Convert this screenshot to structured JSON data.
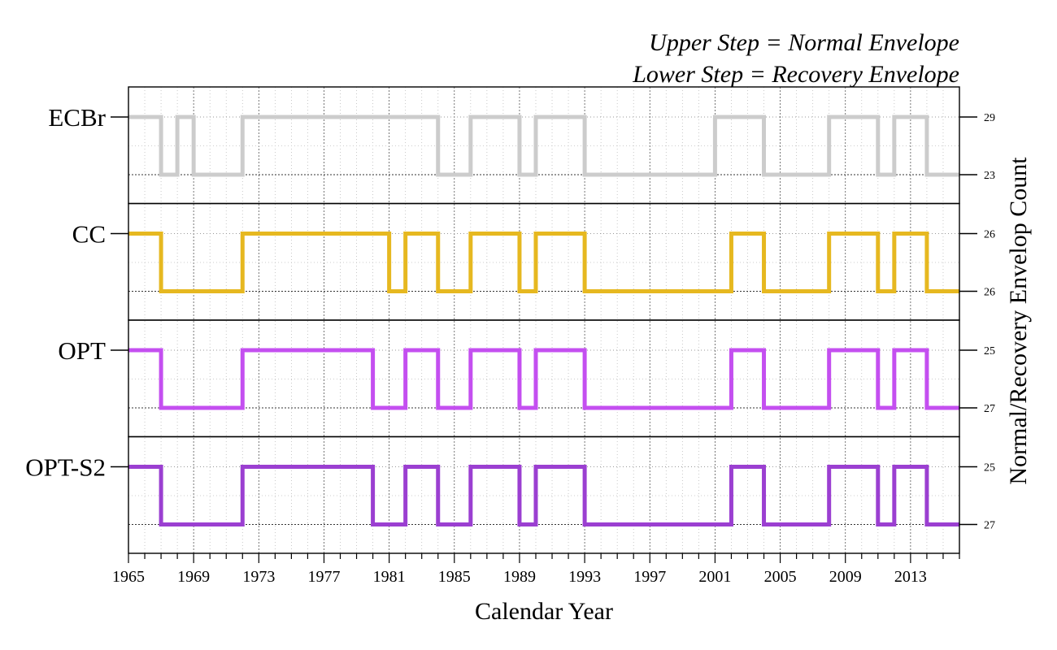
{
  "chart_data": {
    "type": "line",
    "step": true,
    "annotations": [
      "Upper Step = Normal Envelope",
      "Lower Step = Recovery Envelope"
    ],
    "xlabel": "Calendar Year",
    "ylabel": "Normal/Recovery Envelop Count",
    "xlim": [
      1965,
      2016
    ],
    "xticks": [
      1965,
      1969,
      1973,
      1977,
      1981,
      1985,
      1989,
      1993,
      1997,
      2001,
      2005,
      2009,
      2013
    ],
    "grid": true,
    "series": [
      {
        "name": "ECBr",
        "color": "#cccccc",
        "upper_count": "29",
        "lower_count": "23",
        "steps": [
          {
            "from": 1965,
            "to": 1967,
            "state": "upper"
          },
          {
            "from": 1967,
            "to": 1968,
            "state": "lower"
          },
          {
            "from": 1968,
            "to": 1969,
            "state": "upper"
          },
          {
            "from": 1969,
            "to": 1972,
            "state": "lower"
          },
          {
            "from": 1972,
            "to": 1984,
            "state": "upper"
          },
          {
            "from": 1984,
            "to": 1986,
            "state": "lower"
          },
          {
            "from": 1986,
            "to": 1989,
            "state": "upper"
          },
          {
            "from": 1989,
            "to": 1990,
            "state": "lower"
          },
          {
            "from": 1990,
            "to": 1993,
            "state": "upper"
          },
          {
            "from": 1993,
            "to": 2001,
            "state": "lower"
          },
          {
            "from": 2001,
            "to": 2004,
            "state": "upper"
          },
          {
            "from": 2004,
            "to": 2008,
            "state": "lower"
          },
          {
            "from": 2008,
            "to": 2011,
            "state": "upper"
          },
          {
            "from": 2011,
            "to": 2012,
            "state": "lower"
          },
          {
            "from": 2012,
            "to": 2014,
            "state": "upper"
          },
          {
            "from": 2014,
            "to": 2016,
            "state": "lower"
          }
        ]
      },
      {
        "name": "CC",
        "color": "#e6b820",
        "upper_count": "26",
        "lower_count": "26",
        "steps": [
          {
            "from": 1965,
            "to": 1967,
            "state": "upper"
          },
          {
            "from": 1967,
            "to": 1972,
            "state": "lower"
          },
          {
            "from": 1972,
            "to": 1981,
            "state": "upper"
          },
          {
            "from": 1981,
            "to": 1982,
            "state": "lower"
          },
          {
            "from": 1982,
            "to": 1984,
            "state": "upper"
          },
          {
            "from": 1984,
            "to": 1986,
            "state": "lower"
          },
          {
            "from": 1986,
            "to": 1989,
            "state": "upper"
          },
          {
            "from": 1989,
            "to": 1990,
            "state": "lower"
          },
          {
            "from": 1990,
            "to": 1993,
            "state": "upper"
          },
          {
            "from": 1993,
            "to": 2002,
            "state": "lower"
          },
          {
            "from": 2002,
            "to": 2004,
            "state": "upper"
          },
          {
            "from": 2004,
            "to": 2008,
            "state": "lower"
          },
          {
            "from": 2008,
            "to": 2011,
            "state": "upper"
          },
          {
            "from": 2011,
            "to": 2012,
            "state": "lower"
          },
          {
            "from": 2012,
            "to": 2014,
            "state": "upper"
          },
          {
            "from": 2014,
            "to": 2016,
            "state": "lower"
          }
        ]
      },
      {
        "name": "OPT",
        "color": "#c44ff0",
        "upper_count": "25",
        "lower_count": "27",
        "steps": [
          {
            "from": 1965,
            "to": 1967,
            "state": "upper"
          },
          {
            "from": 1967,
            "to": 1972,
            "state": "lower"
          },
          {
            "from": 1972,
            "to": 1980,
            "state": "upper"
          },
          {
            "from": 1980,
            "to": 1982,
            "state": "lower"
          },
          {
            "from": 1982,
            "to": 1984,
            "state": "upper"
          },
          {
            "from": 1984,
            "to": 1986,
            "state": "lower"
          },
          {
            "from": 1986,
            "to": 1989,
            "state": "upper"
          },
          {
            "from": 1989,
            "to": 1990,
            "state": "lower"
          },
          {
            "from": 1990,
            "to": 1993,
            "state": "upper"
          },
          {
            "from": 1993,
            "to": 2002,
            "state": "lower"
          },
          {
            "from": 2002,
            "to": 2004,
            "state": "upper"
          },
          {
            "from": 2004,
            "to": 2008,
            "state": "lower"
          },
          {
            "from": 2008,
            "to": 2011,
            "state": "upper"
          },
          {
            "from": 2011,
            "to": 2012,
            "state": "lower"
          },
          {
            "from": 2012,
            "to": 2014,
            "state": "upper"
          },
          {
            "from": 2014,
            "to": 2016,
            "state": "lower"
          }
        ]
      },
      {
        "name": "OPT-S2",
        "color": "#9b3fd1",
        "upper_count": "25",
        "lower_count": "27",
        "steps": [
          {
            "from": 1965,
            "to": 1967,
            "state": "upper"
          },
          {
            "from": 1967,
            "to": 1972,
            "state": "lower"
          },
          {
            "from": 1972,
            "to": 1980,
            "state": "upper"
          },
          {
            "from": 1980,
            "to": 1982,
            "state": "lower"
          },
          {
            "from": 1982,
            "to": 1984,
            "state": "upper"
          },
          {
            "from": 1984,
            "to": 1986,
            "state": "lower"
          },
          {
            "from": 1986,
            "to": 1989,
            "state": "upper"
          },
          {
            "from": 1989,
            "to": 1990,
            "state": "lower"
          },
          {
            "from": 1990,
            "to": 1993,
            "state": "upper"
          },
          {
            "from": 1993,
            "to": 2002,
            "state": "lower"
          },
          {
            "from": 2002,
            "to": 2004,
            "state": "upper"
          },
          {
            "from": 2004,
            "to": 2008,
            "state": "lower"
          },
          {
            "from": 2008,
            "to": 2011,
            "state": "upper"
          },
          {
            "from": 2011,
            "to": 2012,
            "state": "lower"
          },
          {
            "from": 2012,
            "to": 2014,
            "state": "upper"
          },
          {
            "from": 2014,
            "to": 2016,
            "state": "lower"
          }
        ]
      }
    ]
  }
}
